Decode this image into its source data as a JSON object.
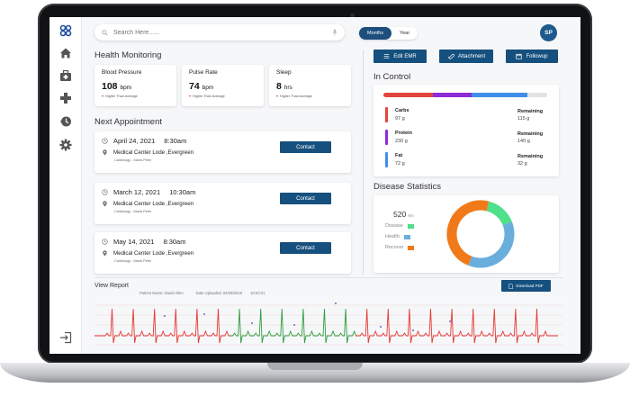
{
  "search": {
    "placeholder": "Search Here......"
  },
  "period_toggle": {
    "options": [
      "Months",
      "Year"
    ],
    "selected": "Months"
  },
  "user": {
    "initials": "SP"
  },
  "sidebar": {
    "icons": [
      "app-logo-icon",
      "home-icon",
      "first-aid-kit-icon",
      "medical-cross-icon",
      "history-icon",
      "settings-icon",
      "logout-icon"
    ]
  },
  "health": {
    "title": "Health Monitoring",
    "metrics": [
      {
        "label": "Blood Pressure",
        "value": "108",
        "unit": "bpm",
        "note": "Higher Than Average"
      },
      {
        "label": "Pulse Rate",
        "value": "74",
        "unit": "bpm",
        "note": "Higher Than Average"
      },
      {
        "label": "Sleep",
        "value": "8",
        "unit": "hrs",
        "note": "Higher Than Average"
      }
    ]
  },
  "appointments": {
    "title": "Next Appointment",
    "contact_label": "Contact",
    "items": [
      {
        "date": "April 24, 2021",
        "time": "8:30am",
        "place": "Medical Center Lode ,Evergreen",
        "doctor": "Cardiology - Maria Peter"
      },
      {
        "date": "March 12, 2021",
        "time": "10:30am",
        "place": "Medical Center Lode ,Evergreen",
        "doctor": "Cardiology - Maria Peter"
      },
      {
        "date": "May 14, 2021",
        "time": "8:30am",
        "place": "Medical Center Lode ,Evergreen",
        "doctor": "Cardiology - Maria Peter"
      }
    ]
  },
  "actions": {
    "edit_emr": "Edit EMR",
    "attachment": "Attachment",
    "followup": "Followup"
  },
  "in_control": {
    "title": "In Control",
    "progress_segments": [
      {
        "color": "#e2453b",
        "fraction": 0.3
      },
      {
        "color": "#8e2bd8",
        "fraction": 0.24
      },
      {
        "color": "#3f8ee8",
        "fraction": 0.34
      },
      {
        "color": "#e2e2e2",
        "fraction": 0.12
      }
    ],
    "nutrients": [
      {
        "name": "Carbs",
        "amount": "97 g",
        "remaining_label": "Remaining",
        "remaining": "115 g",
        "color": "#e2453b"
      },
      {
        "name": "Protein",
        "amount": "230 g",
        "remaining_label": "Remaining",
        "remaining": "140 g",
        "color": "#8e2bd8"
      },
      {
        "name": "Fat",
        "amount": "72 g",
        "remaining_label": "Remaining",
        "remaining": "32 g",
        "color": "#3f8ee8"
      }
    ]
  },
  "disease": {
    "title": "Disease Statistics",
    "total_value": "520",
    "total_unit": "km",
    "legend": [
      {
        "label": "Disease",
        "color": "#4ee08a"
      },
      {
        "label": "Health",
        "color": "#6aaede"
      },
      {
        "label": "Recover",
        "color": "#f07a1a"
      }
    ],
    "chart_data": {
      "type": "pie",
      "labels": [
        "Disease",
        "Health",
        "Recover"
      ],
      "values": [
        15,
        37,
        48
      ],
      "colors": [
        "#4ee08a",
        "#6aaede",
        "#f07a1a"
      ]
    }
  },
  "report": {
    "title": "View Report",
    "patient_label": "Patient Name:",
    "patient_name": "David Allen",
    "date_label": "Date Uploaded:",
    "date": "04/28/2018",
    "time": "10:03:01",
    "download_label": "Download PDF"
  }
}
